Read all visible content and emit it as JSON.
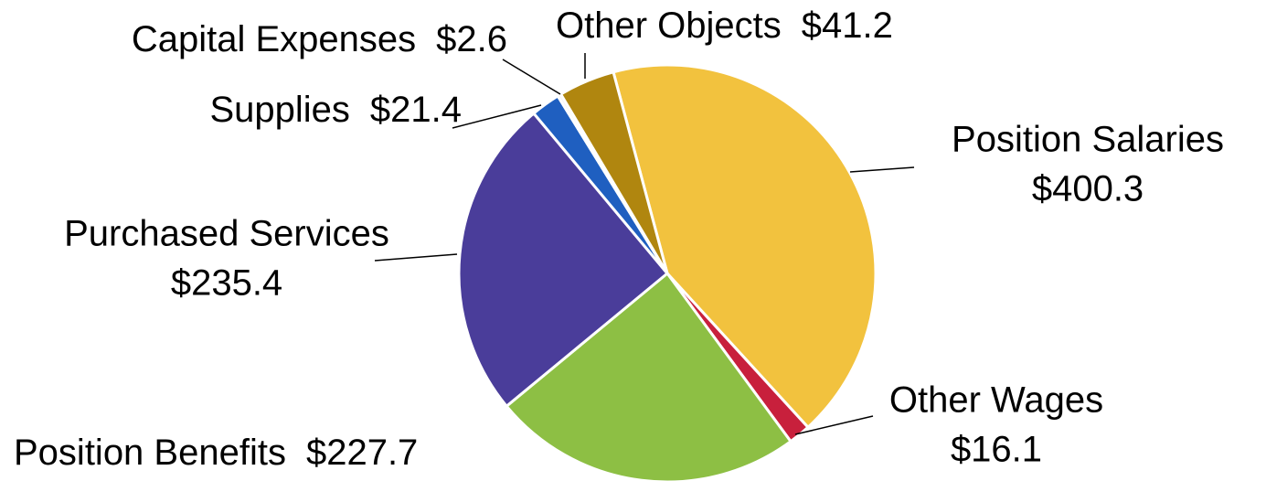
{
  "chart_data": {
    "type": "pie",
    "categories": [
      "Position Salaries",
      "Other Wages",
      "Position Benefits",
      "Purchased Services",
      "Supplies",
      "Capital Expenses",
      "Other Objects"
    ],
    "values": [
      400.3,
      16.1,
      227.7,
      235.4,
      21.4,
      2.6,
      41.2
    ],
    "value_labels": [
      "$400.3",
      "$16.1",
      "$227.7",
      "$235.4",
      "$21.4",
      "$2.6",
      "$41.2"
    ],
    "colors": [
      "#f2c23e",
      "#c8203c",
      "#8dbf44",
      "#4a3d9a",
      "#1f5fc0",
      "#f4f4f4",
      "#b0860f"
    ]
  }
}
